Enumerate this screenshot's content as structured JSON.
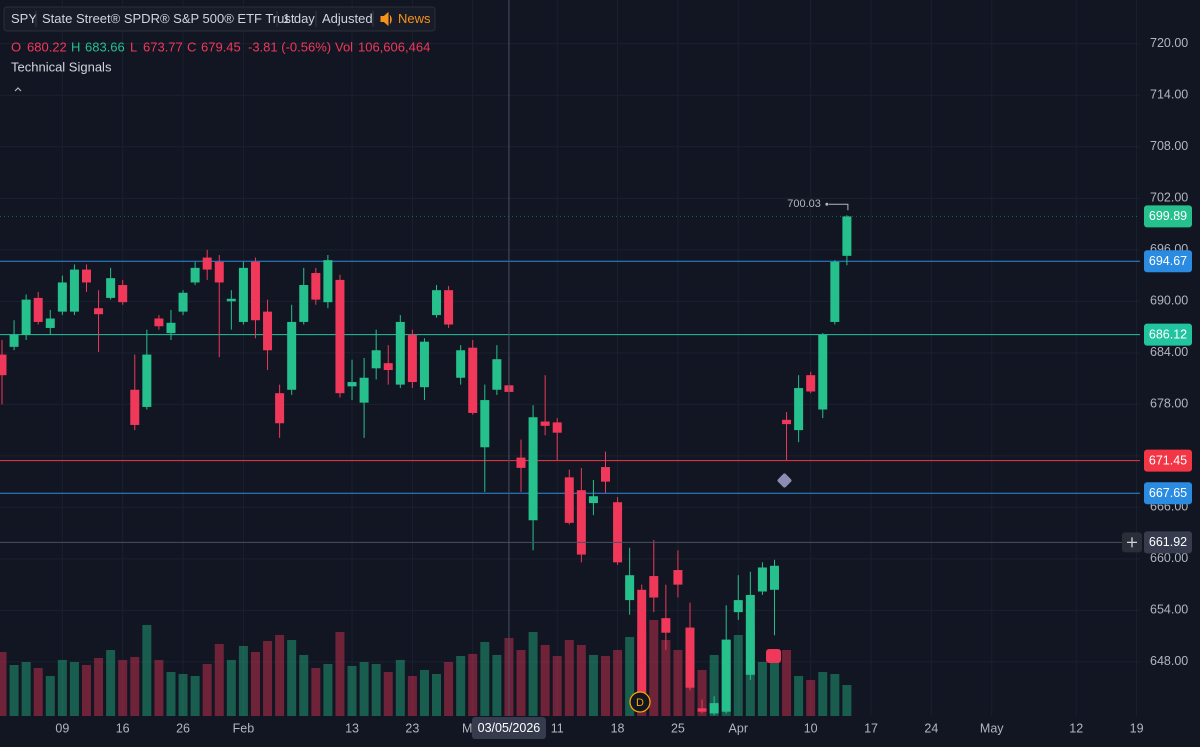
{
  "header": {
    "symbol": "SPY",
    "name": "State Street® SPDR® S&P 500® ETF Trust",
    "interval": "1 day",
    "adjustment": "Adjusted",
    "news": "News"
  },
  "legend": {
    "open_label": "O",
    "open": 680.22,
    "high_label": "H",
    "high": 683.66,
    "low_label": "L",
    "low": 673.77,
    "close_label": "C",
    "close": 679.45,
    "change": "-3.81 (-0.56%)",
    "volume_label": "Vol",
    "volume": {
      "value": 106606464,
      "label": "106,606,464"
    }
  },
  "indicators": {
    "title": "Technical Signals"
  },
  "events": {
    "dividend": "D"
  },
  "chart_data": {
    "type": "candlestick",
    "categories": [
      null,
      null,
      null,
      null,
      null,
      "09",
      null,
      null,
      null,
      null,
      "16",
      null,
      null,
      null,
      null,
      "26",
      null,
      null,
      null,
      null,
      "Feb",
      null,
      null,
      null,
      null,
      null,
      null,
      null,
      null,
      "13",
      null,
      null,
      null,
      null,
      "23",
      null,
      null,
      null,
      null,
      "Mar",
      null,
      null,
      null,
      null,
      null,
      null,
      "11",
      null,
      null,
      null,
      null,
      "18",
      null,
      null,
      null,
      null,
      "25",
      null,
      null,
      null,
      null,
      "Apr",
      null,
      null,
      null,
      null,
      null,
      "10",
      null,
      null,
      null,
      null,
      "17",
      null,
      null,
      null,
      null,
      "24",
      null,
      null,
      null,
      null,
      "May",
      null,
      null,
      null,
      null,
      null,
      null,
      "12",
      null,
      null,
      null,
      null,
      "19",
      null
    ],
    "open": [
      683.8,
      684.7,
      686.1,
      690.4,
      686.9,
      688.8,
      688.8,
      693.7,
      689.2,
      690.4,
      691.9,
      679.7,
      677.7,
      688.0,
      686.3,
      688.8,
      692.2,
      695.1,
      694.6,
      690.0,
      687.6,
      694.6,
      688.8,
      679.3,
      679.7,
      687.6,
      693.3,
      689.9,
      692.5,
      680.1,
      678.2,
      682.2,
      682.8,
      680.3,
      686.1,
      680.0,
      688.4,
      691.3,
      681.1,
      684.6,
      673.0,
      679.7,
      680.22,
      671.8,
      664.5,
      676.0,
      675.9,
      669.5,
      668.0,
      666.5,
      670.7,
      666.6,
      655.2,
      656.4,
      658.0,
      653.1,
      658.7,
      652.0,
      642.6,
      642.0,
      642.2,
      653.8,
      646.5,
      656.2,
      656.4,
      676.2,
      675.0,
      681.4,
      677.4,
      687.6,
      695.3,
      null,
      null,
      null,
      null,
      null,
      null,
      null,
      null,
      null,
      null,
      null,
      null,
      null,
      null,
      null,
      null,
      null,
      null,
      null,
      null,
      null,
      null,
      null,
      null,
      null
    ],
    "high": [
      685.5,
      687.8,
      690.8,
      691.1,
      689.0,
      693.0,
      694.3,
      694.3,
      691.3,
      693.9,
      692.5,
      683.8,
      686.7,
      688.4,
      689.0,
      691.3,
      694.6,
      696.0,
      695.4,
      691.3,
      694.6,
      695.1,
      690.2,
      680.3,
      689.6,
      693.9,
      693.9,
      695.4,
      693.1,
      683.2,
      683.4,
      686.7,
      684.9,
      688.4,
      686.7,
      685.7,
      691.9,
      691.8,
      684.9,
      685.5,
      680.3,
      684.9,
      683.66,
      673.9,
      677.9,
      681.4,
      676.4,
      670.4,
      670.6,
      669.2,
      672.5,
      667.2,
      661.3,
      657.0,
      662.2,
      657.0,
      661.0,
      654.9,
      643.6,
      644.0,
      654.6,
      658.1,
      658.5,
      659.6,
      659.9,
      677.1,
      681.4,
      681.8,
      686.3,
      694.8,
      700.03,
      null,
      null,
      null,
      null,
      null,
      null,
      null,
      null,
      null,
      null,
      null,
      null,
      null,
      null,
      null,
      null,
      null,
      null,
      null,
      null,
      null,
      null,
      null,
      null,
      null
    ],
    "low": [
      678.0,
      684.3,
      685.5,
      687.3,
      686.1,
      688.4,
      688.4,
      691.1,
      684.1,
      690.2,
      689.6,
      675.0,
      677.4,
      686.7,
      685.5,
      688.4,
      691.9,
      692.5,
      683.5,
      686.7,
      687.3,
      685.7,
      682.0,
      674.1,
      679.1,
      687.3,
      689.6,
      689.2,
      678.8,
      678.5,
      674.1,
      680.9,
      680.3,
      679.9,
      679.9,
      678.5,
      688.1,
      686.9,
      680.3,
      676.8,
      667.8,
      679.1,
      673.77,
      667.8,
      661.0,
      674.4,
      671.5,
      664.0,
      659.6,
      665.1,
      667.7,
      659.3,
      653.5,
      643.0,
      653.8,
      649.4,
      655.5,
      644.7,
      642.0,
      641.8,
      642.0,
      652.9,
      645.9,
      655.8,
      651.1,
      671.5,
      673.6,
      679.3,
      676.4,
      687.3,
      694.2,
      null,
      null,
      null,
      null,
      null,
      null,
      null,
      null,
      null,
      null,
      null,
      null,
      null,
      null,
      null,
      null,
      null,
      null,
      null,
      null,
      null,
      null,
      null,
      null,
      null
    ],
    "close": [
      681.4,
      686.1,
      690.2,
      687.6,
      688.0,
      692.2,
      693.7,
      692.2,
      688.5,
      692.7,
      689.9,
      675.6,
      683.8,
      687.1,
      687.5,
      691.0,
      693.9,
      693.7,
      692.2,
      690.3,
      693.9,
      687.8,
      684.3,
      675.8,
      687.6,
      691.9,
      690.2,
      694.8,
      679.3,
      680.6,
      681.1,
      684.3,
      682.0,
      687.6,
      680.6,
      685.3,
      691.3,
      687.3,
      684.3,
      677.0,
      678.5,
      683.26,
      679.45,
      670.6,
      676.5,
      675.5,
      674.7,
      664.2,
      660.5,
      667.3,
      669.0,
      659.6,
      658.1,
      643.6,
      655.5,
      651.4,
      657.0,
      645.0,
      642.2,
      643.2,
      650.6,
      655.2,
      655.8,
      659.0,
      659.2,
      675.7,
      679.9,
      679.5,
      686.1,
      694.6,
      699.89,
      null,
      null,
      null,
      null,
      null,
      null,
      null,
      null,
      null,
      null,
      null,
      null,
      null,
      null,
      null,
      null,
      null,
      null,
      null,
      null,
      null,
      null,
      null,
      null,
      null
    ],
    "volume": [
      87500000,
      69700000,
      73800000,
      65600000,
      54700000,
      76600000,
      73800000,
      69700000,
      79300000,
      90200000,
      76600000,
      80700000,
      124400000,
      76600000,
      60100000,
      57400000,
      54700000,
      71100000,
      98400000,
      76600000,
      95700000,
      87500000,
      102500000,
      110700000,
      103900000,
      83400000,
      65600000,
      71100000,
      114800000,
      68400000,
      73800000,
      71100000,
      60100000,
      76600000,
      54700000,
      62900000,
      57400000,
      73800000,
      82000000,
      84800000,
      101200000,
      83400000,
      106606464,
      90200000,
      114800000,
      97100000,
      82000000,
      103900000,
      97100000,
      83400000,
      82000000,
      90200000,
      108000000,
      117600000,
      131200000,
      103900000,
      90200000,
      90200000,
      62900000,
      83400000,
      103900000,
      110700000,
      117600000,
      73800000,
      83400000,
      90200000,
      54700000,
      49200000,
      60100000,
      57400000,
      42400000,
      null,
      null,
      null,
      null,
      null,
      null,
      null,
      null,
      null,
      null,
      null,
      null,
      null,
      null,
      null,
      null,
      null,
      null,
      null,
      null,
      null,
      null,
      null,
      null,
      null
    ],
    "up_color": "#25c08c",
    "down_color": "#f0385a",
    "ylim": [
      641.7,
      725.1
    ],
    "yticks": [
      {
        "value": 648,
        "label": "648.00"
      },
      {
        "value": 654,
        "label": "654.00"
      },
      {
        "value": 660,
        "label": "660.00"
      },
      {
        "value": 666,
        "label": "666.00"
      },
      {
        "value": 672,
        "label": "672.00"
      },
      {
        "value": 678,
        "label": "678.00"
      },
      {
        "value": 684,
        "label": "684.00"
      },
      {
        "value": 690,
        "label": "690.00"
      },
      {
        "value": 696,
        "label": "696.00"
      },
      {
        "value": 702,
        "label": "702.00"
      },
      {
        "value": 708,
        "label": "708.00"
      },
      {
        "value": 714,
        "label": "714.00"
      },
      {
        "value": 720,
        "label": "720.00"
      }
    ],
    "grid": true,
    "price_lines": [
      {
        "value": 694.67,
        "color": "#2a8be0"
      },
      {
        "value": 686.12,
        "color": "#22c4a0"
      },
      {
        "value": 671.45,
        "color": "#f23645"
      },
      {
        "value": 667.65,
        "color": "#2a8be0"
      }
    ],
    "crosshair": {
      "price": 661.92,
      "date": "03/05/2026"
    }
  }
}
